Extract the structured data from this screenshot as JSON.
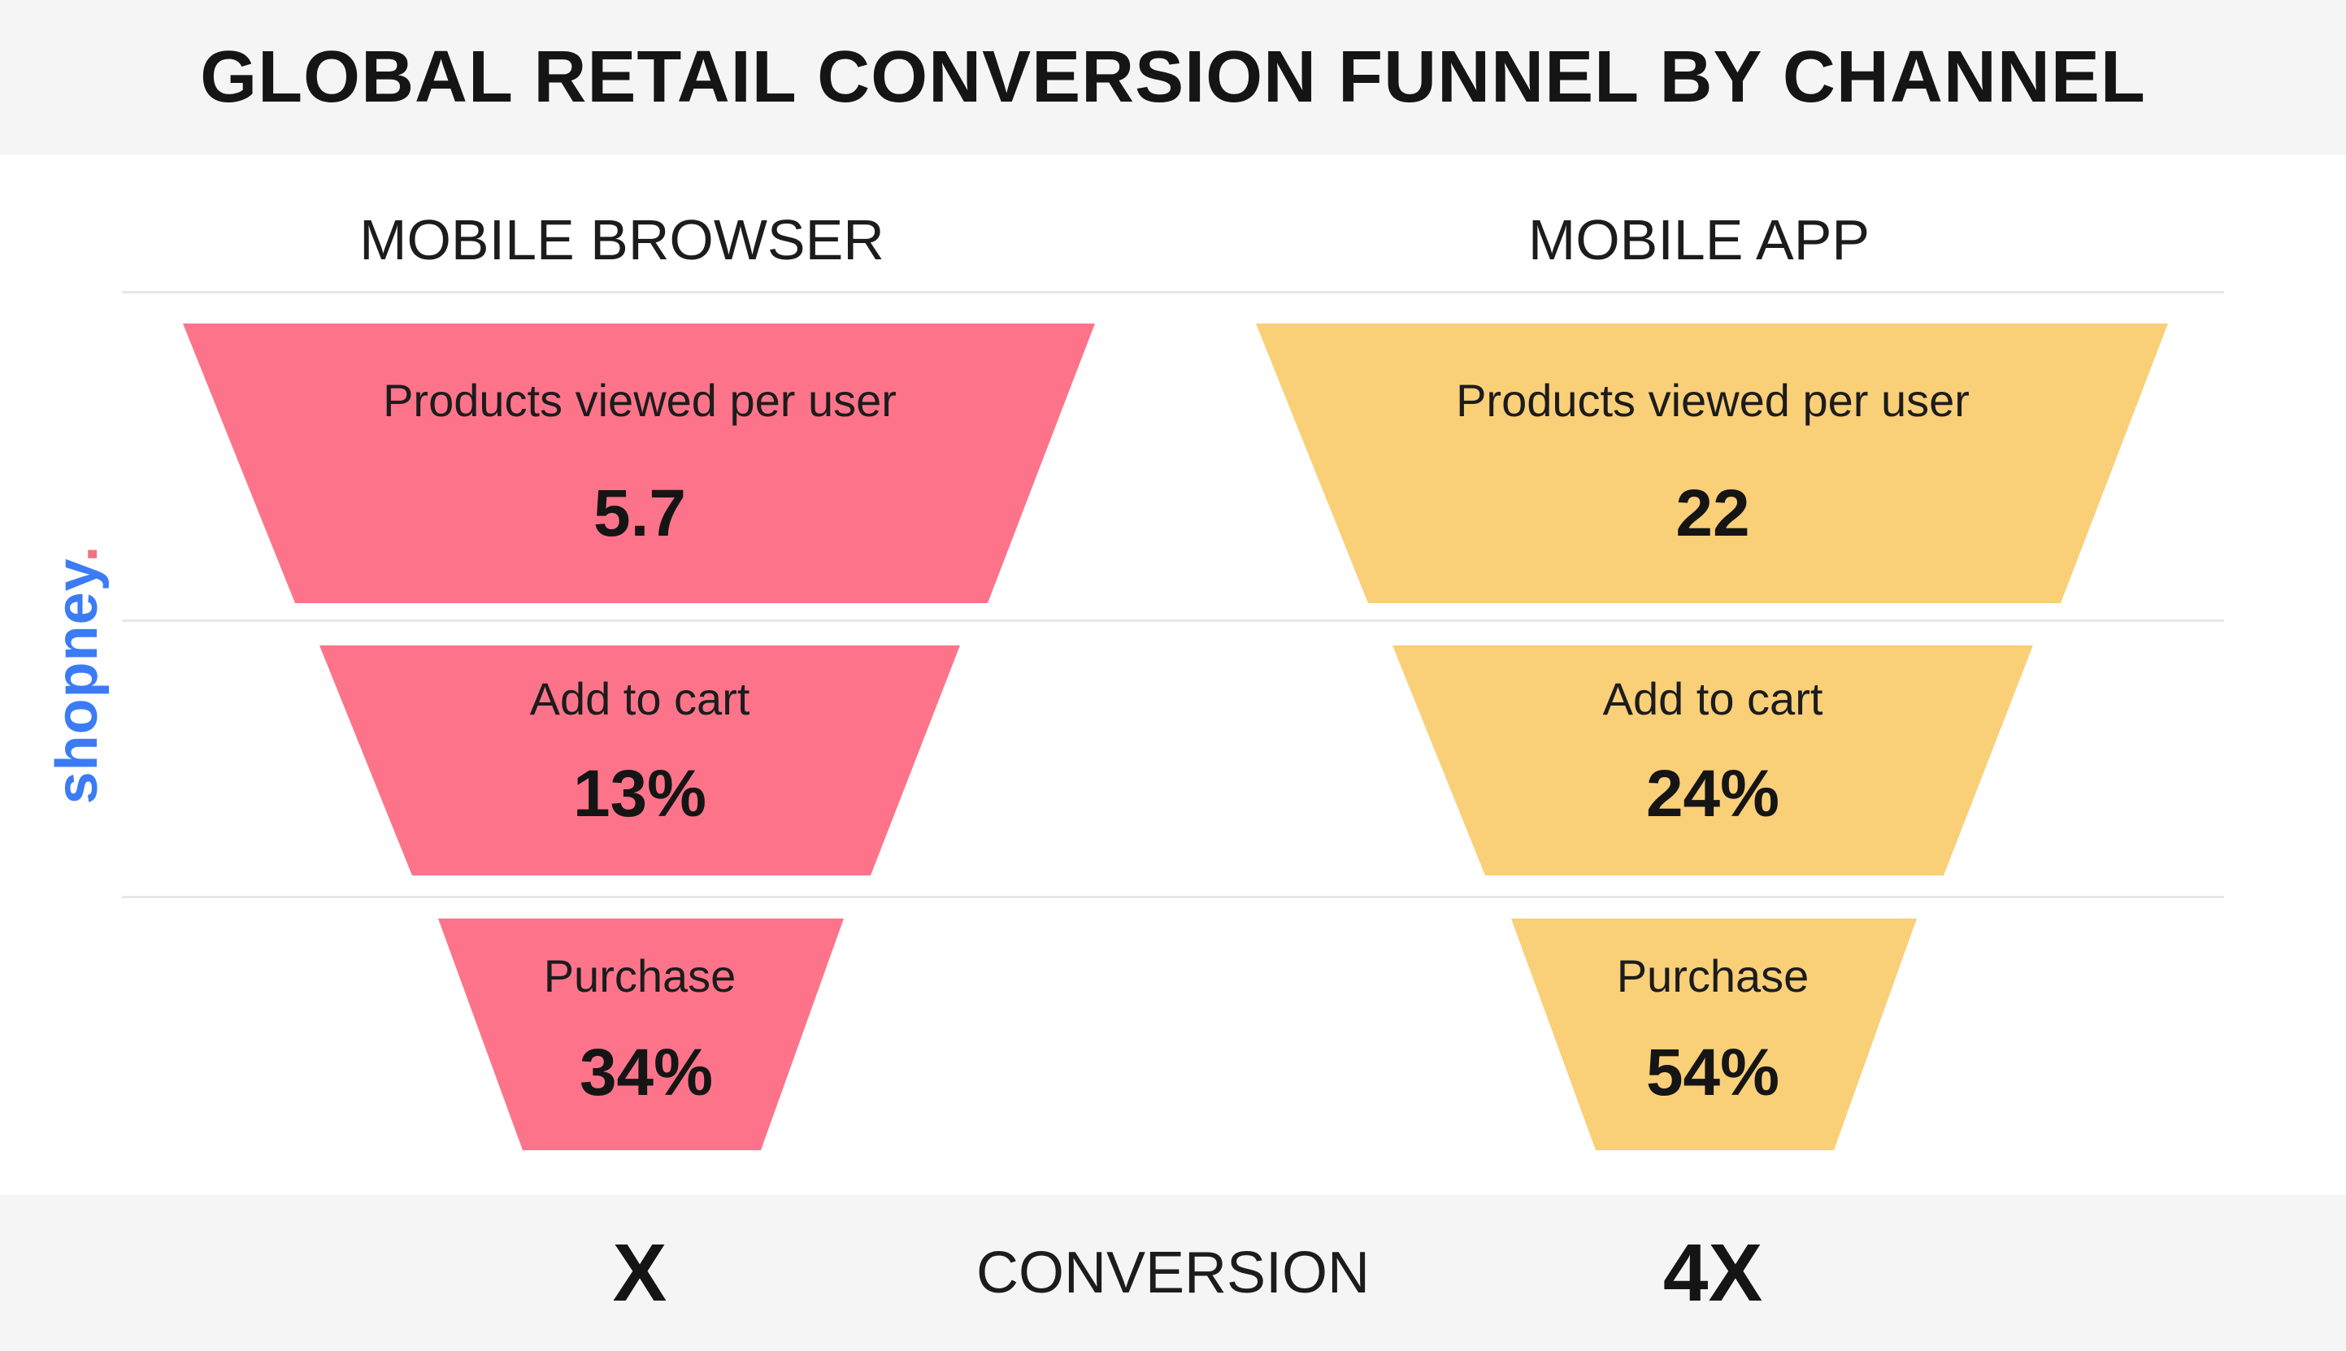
{
  "title": "GLOBAL RETAIL CONVERSION FUNNEL BY CHANNEL",
  "brand": {
    "name": "shopney",
    "dot": "."
  },
  "colors": {
    "browser": "#fd748a",
    "app": "#f9cf78",
    "brand_blue": "#3b7cf5",
    "brand_dot": "#f2727f"
  },
  "channels": [
    {
      "name": "MOBILE BROWSER",
      "stages": [
        {
          "label": "Products viewed per user",
          "value": "5.7"
        },
        {
          "label": "Add to cart",
          "value": "13%"
        },
        {
          "label": "Purchase",
          "value": "34%"
        }
      ],
      "conversion": "X"
    },
    {
      "name": "MOBILE APP",
      "stages": [
        {
          "label": "Products viewed per user",
          "value": "22"
        },
        {
          "label": "Add to cart",
          "value": "24%"
        },
        {
          "label": "Purchase",
          "value": "54%"
        }
      ],
      "conversion": "4X"
    }
  ],
  "footer": {
    "label": "CONVERSION"
  }
}
